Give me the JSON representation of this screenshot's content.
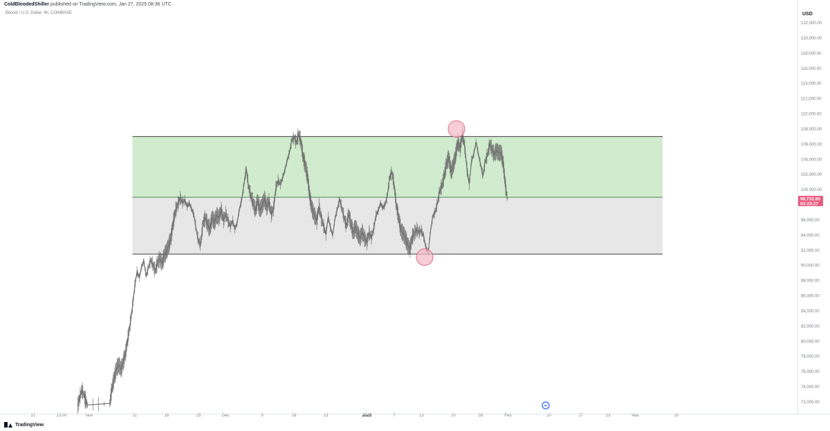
{
  "header": {
    "author": "ColdBloodedShiller",
    "published": "published on TradingView.com, Jan 27, 2025 08:36 UTC",
    "symbol": "Bitcoin / U.S. Dollar, 4h, COINBASE",
    "currency": "USD"
  },
  "footer": {
    "brand": "TradingView"
  },
  "chart_data": {
    "type": "line",
    "title": "Bitcoin / U.S. Dollar, 4h, COINBASE",
    "ylabel": "USD",
    "ylim": [
      71000,
      123000
    ],
    "grid": false,
    "price_ticks": [
      122000,
      120000,
      118000,
      116000,
      114000,
      112000,
      110000,
      108000,
      106000,
      104000,
      102000,
      100000,
      98000,
      96000,
      94000,
      92000,
      90000,
      88000,
      86000,
      84000,
      82000,
      80000,
      78000,
      76000,
      74000,
      72000
    ],
    "price_tick_labels": [
      "122,000.00",
      "120,000.00",
      "118,000.00",
      "116,000.00",
      "114,000.00",
      "112,000.00",
      "110,000.00",
      "108,000.00",
      "106,000.00",
      "104,000.00",
      "102,000.00",
      "100,000.00",
      "98,000.00",
      "96,000.00",
      "94,000.00",
      "92,000.00",
      "90,000.00",
      "88,000.00",
      "86,000.00",
      "84,000.00",
      "82,000.00",
      "80,000.00",
      "78,000.00",
      "76,000.00",
      "74,000.00",
      "72,000.00"
    ],
    "time_ticks": [
      {
        "label": "21",
        "day": -4
      },
      {
        "label": "13:00",
        "day": -3.4
      },
      {
        "label": "Nov",
        "day": 0
      },
      {
        "label": "11",
        "day": 10
      },
      {
        "label": "18",
        "day": 17
      },
      {
        "label": "25",
        "day": 24
      },
      {
        "label": "Dec",
        "day": 30
      },
      {
        "label": "9",
        "day": 38
      },
      {
        "label": "16",
        "day": 45
      },
      {
        "label": "23",
        "day": 52
      },
      {
        "label": "2025",
        "day": 61,
        "bold": true
      },
      {
        "label": "7",
        "day": 67
      },
      {
        "label": "13",
        "day": 73
      },
      {
        "label": "20",
        "day": 80
      },
      {
        "label": "26",
        "day": 86
      },
      {
        "label": "Feb",
        "day": 92
      },
      {
        "label": "10",
        "day": 101
      },
      {
        "label": "17",
        "day": 108
      },
      {
        "label": "23",
        "day": 114
      },
      {
        "label": "Mar",
        "day": 120
      },
      {
        "label": "10",
        "day": 129
      }
    ],
    "series": [
      {
        "color": "#6b6b6b",
        "points": [
          [
            -2.5,
            71500
          ],
          [
            -2.0,
            72800
          ],
          [
            -1.6,
            73600
          ],
          [
            -1.2,
            73000
          ],
          [
            -0.8,
            72200
          ],
          [
            -0.4,
            71600
          ],
          [
            4.5,
            71800
          ],
          [
            5.0,
            73800
          ],
          [
            5.5,
            75200
          ],
          [
            6.0,
            76400
          ],
          [
            6.5,
            76900
          ],
          [
            7.0,
            76300
          ],
          [
            7.5,
            77300
          ],
          [
            8.0,
            78500
          ],
          [
            8.5,
            80400
          ],
          [
            9.0,
            82300
          ],
          [
            9.5,
            84600
          ],
          [
            10.0,
            87200
          ],
          [
            10.5,
            89200
          ],
          [
            11.0,
            88400
          ],
          [
            11.5,
            89800
          ],
          [
            12.0,
            90600
          ],
          [
            12.5,
            88600
          ],
          [
            13.0,
            89700
          ],
          [
            13.5,
            90700
          ],
          [
            14.0,
            90100
          ],
          [
            14.5,
            89300
          ],
          [
            15.0,
            90400
          ],
          [
            15.5,
            90900
          ],
          [
            16.0,
            90300
          ],
          [
            16.5,
            91300
          ],
          [
            17.0,
            91900
          ],
          [
            17.5,
            92700
          ],
          [
            18.0,
            93800
          ],
          [
            18.5,
            95800
          ],
          [
            19.0,
            97300
          ],
          [
            19.5,
            98100
          ],
          [
            20.0,
            98900
          ],
          [
            20.5,
            98300
          ],
          [
            21.0,
            98600
          ],
          [
            21.5,
            97800
          ],
          [
            22.0,
            98200
          ],
          [
            22.5,
            97400
          ],
          [
            23.0,
            96700
          ],
          [
            23.5,
            94800
          ],
          [
            24.0,
            93200
          ],
          [
            24.5,
            92800
          ],
          [
            25.0,
            95600
          ],
          [
            25.5,
            96300
          ],
          [
            26.0,
            95400
          ],
          [
            26.5,
            94800
          ],
          [
            27.0,
            96300
          ],
          [
            27.5,
            95700
          ],
          [
            28.0,
            96600
          ],
          [
            28.5,
            96300
          ],
          [
            29.0,
            97300
          ],
          [
            29.5,
            96000
          ],
          [
            30.0,
            96800
          ],
          [
            30.5,
            95900
          ],
          [
            31.0,
            95200
          ],
          [
            31.5,
            95900
          ],
          [
            32.0,
            94800
          ],
          [
            32.5,
            95600
          ],
          [
            33.0,
            97400
          ],
          [
            33.5,
            98600
          ],
          [
            34.0,
            100700
          ],
          [
            34.5,
            102800
          ],
          [
            35.0,
            100400
          ],
          [
            35.5,
            99200
          ],
          [
            36.0,
            98300
          ],
          [
            36.5,
            97200
          ],
          [
            37.0,
            98600
          ],
          [
            37.5,
            97300
          ],
          [
            38.0,
            97900
          ],
          [
            38.5,
            98800
          ],
          [
            39.0,
            97700
          ],
          [
            39.5,
            98400
          ],
          [
            40.0,
            96800
          ],
          [
            40.5,
            97500
          ],
          [
            41.0,
            100200
          ],
          [
            41.5,
            101200
          ],
          [
            42.0,
            100700
          ],
          [
            42.5,
            101600
          ],
          [
            43.0,
            102600
          ],
          [
            43.5,
            103900
          ],
          [
            44.0,
            104900
          ],
          [
            44.5,
            106500
          ],
          [
            45.0,
            106900
          ],
          [
            45.5,
            106200
          ],
          [
            46.0,
            107300
          ],
          [
            46.5,
            106400
          ],
          [
            47.0,
            104300
          ],
          [
            47.5,
            103100
          ],
          [
            48.0,
            101600
          ],
          [
            48.5,
            98900
          ],
          [
            49.0,
            97400
          ],
          [
            49.5,
            96600
          ],
          [
            50.0,
            95900
          ],
          [
            50.5,
            97800
          ],
          [
            51.0,
            96200
          ],
          [
            51.5,
            95200
          ],
          [
            52.0,
            94100
          ],
          [
            52.5,
            96400
          ],
          [
            53.0,
            95000
          ],
          [
            53.5,
            94000
          ],
          [
            54.0,
            96200
          ],
          [
            54.5,
            97400
          ],
          [
            55.0,
            98700
          ],
          [
            55.5,
            97600
          ],
          [
            56.0,
            96300
          ],
          [
            56.5,
            95200
          ],
          [
            57.0,
            96800
          ],
          [
            57.5,
            95500
          ],
          [
            58.0,
            94300
          ],
          [
            58.5,
            95100
          ],
          [
            59.0,
            94200
          ],
          [
            59.5,
            93600
          ],
          [
            60.0,
            94400
          ],
          [
            60.5,
            93600
          ],
          [
            61.0,
            93100
          ],
          [
            61.5,
            94300
          ],
          [
            62.0,
            93700
          ],
          [
            62.5,
            94800
          ],
          [
            63.0,
            96600
          ],
          [
            63.5,
            97200
          ],
          [
            64.0,
            98200
          ],
          [
            64.5,
            97600
          ],
          [
            65.0,
            98000
          ],
          [
            65.5,
            99200
          ],
          [
            66.0,
            101600
          ],
          [
            66.5,
            102300
          ],
          [
            67.0,
            100600
          ],
          [
            67.5,
            97800
          ],
          [
            68.0,
            96300
          ],
          [
            68.5,
            94600
          ],
          [
            69.0,
            94200
          ],
          [
            69.5,
            93600
          ],
          [
            70.0,
            92600
          ],
          [
            70.5,
            92200
          ],
          [
            71.0,
            93800
          ],
          [
            71.5,
            94300
          ],
          [
            72.0,
            94700
          ],
          [
            72.5,
            94400
          ],
          [
            73.0,
            94600
          ],
          [
            73.5,
            93800
          ],
          [
            74.0,
            92300
          ],
          [
            74.5,
            91800
          ],
          [
            75.0,
            94600
          ],
          [
            75.5,
            96500
          ],
          [
            76.0,
            97000
          ],
          [
            76.5,
            98200
          ],
          [
            77.0,
            99800
          ],
          [
            77.5,
            100500
          ],
          [
            78.0,
            101800
          ],
          [
            78.5,
            103400
          ],
          [
            79.0,
            104300
          ],
          [
            79.5,
            102300
          ],
          [
            80.0,
            103200
          ],
          [
            80.5,
            104500
          ],
          [
            81.0,
            106300
          ],
          [
            81.5,
            105400
          ],
          [
            82.0,
            107300
          ],
          [
            82.5,
            105700
          ],
          [
            83.0,
            102700
          ],
          [
            83.5,
            100700
          ],
          [
            84.0,
            103800
          ],
          [
            84.5,
            104700
          ],
          [
            85.0,
            106300
          ],
          [
            85.5,
            104700
          ],
          [
            86.0,
            103300
          ],
          [
            86.5,
            101800
          ],
          [
            87.0,
            103700
          ],
          [
            87.5,
            104600
          ],
          [
            88.0,
            106000
          ],
          [
            88.5,
            105300
          ],
          [
            89.0,
            104600
          ],
          [
            89.5,
            105200
          ],
          [
            90.0,
            104800
          ],
          [
            90.5,
            104900
          ],
          [
            91.0,
            103300
          ],
          [
            91.5,
            100300
          ],
          [
            91.9,
            98733
          ]
        ]
      }
    ],
    "zones": [
      {
        "name": "upper-box",
        "price_top": 107000,
        "price_bottom": 99000,
        "start_day": 9.5,
        "end_day": 171,
        "color": "#c8e8c4"
      },
      {
        "name": "lower-box",
        "price_top": 99000,
        "price_bottom": 91500,
        "start_day": 9.5,
        "end_day": 171,
        "color": "#e3e3e3"
      }
    ],
    "markers": [
      {
        "name": "top-marker",
        "day": 80.7,
        "price": 108000,
        "color": "#f4b8c6"
      },
      {
        "name": "bottom-marker",
        "day": 73.7,
        "price": 91100,
        "color": "#f4b8c6"
      }
    ],
    "last_price": {
      "value": "98,732.85",
      "countdown": "03:23:27",
      "price": 98733,
      "color": "#e85d80"
    }
  }
}
